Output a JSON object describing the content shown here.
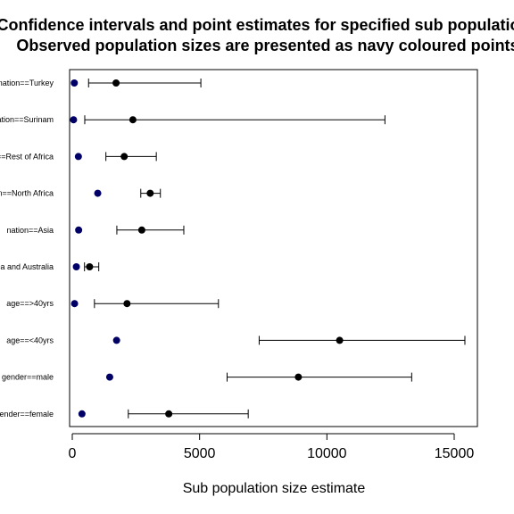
{
  "chart_data": {
    "type": "scatter",
    "title_lines": [
      "Confidence intervals and point estimates for specified sub populations",
      "Observed population sizes are presented as navy coloured points"
    ],
    "xlabel": "Sub population size estimate",
    "ylabel": "",
    "xlim": [
      -300,
      16000
    ],
    "xticks": [
      0,
      5000,
      10000,
      15000
    ],
    "xtick_labels": [
      "0",
      "5000",
      "10000",
      "15000"
    ],
    "grid": false,
    "observed_color": "#000066",
    "estimate_color": "#000000",
    "rows": [
      {
        "label": "nation==Turkey",
        "observed": 80,
        "estimate": 1720,
        "lower": 640,
        "upper": 5050
      },
      {
        "label": "nation==Surinam",
        "observed": 50,
        "estimate": 2380,
        "lower": 490,
        "upper": 12280
      },
      {
        "label": "nation==Rest of Africa",
        "observed": 240,
        "estimate": 2040,
        "lower": 1320,
        "upper": 3300
      },
      {
        "label": "nation==North Africa",
        "observed": 1000,
        "estimate": 3060,
        "lower": 2690,
        "upper": 3460
      },
      {
        "label": "nation==Asia",
        "observed": 250,
        "estimate": 2730,
        "lower": 1750,
        "upper": 4380
      },
      {
        "label": "nation==America and Australia",
        "observed": 160,
        "estimate": 680,
        "lower": 480,
        "upper": 1040
      },
      {
        "label": "age==>40yrs",
        "observed": 90,
        "estimate": 2150,
        "lower": 870,
        "upper": 5740
      },
      {
        "label": "age==<40yrs",
        "observed": 1740,
        "estimate": 10500,
        "lower": 7340,
        "upper": 15420
      },
      {
        "label": "gender==male",
        "observed": 1470,
        "estimate": 8880,
        "lower": 6080,
        "upper": 13330
      },
      {
        "label": "gender==female",
        "observed": 380,
        "estimate": 3790,
        "lower": 2200,
        "upper": 6910
      }
    ]
  }
}
